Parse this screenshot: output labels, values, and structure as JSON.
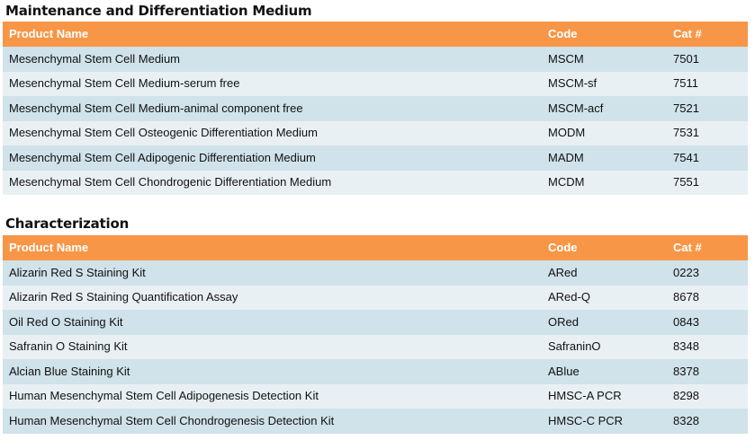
{
  "sections": [
    {
      "title": "Maintenance and Differentiation Medium",
      "headers": [
        "Product Name",
        "Code",
        "Cat #"
      ],
      "rows": [
        [
          "Mesenchymal Stem Cell Medium",
          "MSCM",
          "7501"
        ],
        [
          "Mesenchymal Stem Cell Medium-serum free",
          "MSCM-sf",
          "7511"
        ],
        [
          "Mesenchymal Stem Cell Medium-animal component free",
          "MSCM-acf",
          "7521"
        ],
        [
          "Mesenchymal Stem Cell Osteogenic Differentiation Medium",
          "MODM",
          "7531"
        ],
        [
          "Mesenchymal Stem Cell Adipogenic Differentiation Medium",
          "MADM",
          "7541"
        ],
        [
          "Mesenchymal Stem Cell Chondrogenic Differentiation Medium",
          "MCDM",
          "7551"
        ]
      ]
    },
    {
      "title": "Characterization",
      "headers": [
        "Product Name",
        "Code",
        "Cat #"
      ],
      "rows": [
        [
          "Alizarin Red S Staining Kit",
          "ARed",
          "0223"
        ],
        [
          "Alizarin Red S Staining Quantification Assay",
          "ARed-Q",
          "8678"
        ],
        [
          "Oil Red O Staining Kit",
          "ORed",
          "0843"
        ],
        [
          "Safranin O Staining Kit",
          "SafraninO",
          "8348"
        ],
        [
          "Alcian Blue Staining Kit",
          "ABlue",
          "8378"
        ],
        [
          "Human Mesenchymal Stem Cell Adipogenesis Detection Kit",
          "HMSC-A PCR",
          "8298"
        ],
        [
          "Human Mesenchymal Stem Cell Chondrogenesis Detection Kit",
          "HMSC-C PCR",
          "8328"
        ]
      ]
    }
  ],
  "colors": {
    "header": "#F79646",
    "row_dark": "#D0E2EA",
    "row_light": "#E9F0F4"
  }
}
